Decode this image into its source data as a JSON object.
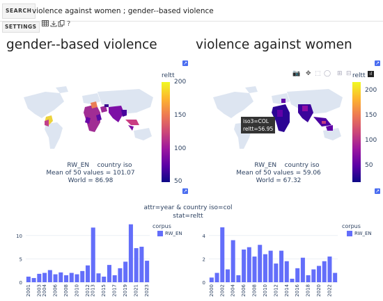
{
  "search": {
    "button_label": "SEARCH",
    "query": "violence against women ; gender--based violence"
  },
  "settings": {
    "button_label": "SETTINGS",
    "help_label": "?"
  },
  "panels": [
    {
      "title": "gender--based violence",
      "colorbar_title": "reltt",
      "colorbar_ticks": [
        "200",
        "150",
        "100",
        "50"
      ],
      "colorbar_range": [
        50,
        200
      ],
      "map_caption_source": "RW_EN",
      "map_caption_label": "country iso",
      "mean_text": "Mean of 50 values = 101.07",
      "world_text": "World = 86.98"
    },
    {
      "title": "violence against women",
      "colorbar_title": "reltt",
      "colorbar_ticks": [
        "200",
        "150",
        "100",
        "50"
      ],
      "colorbar_range": [
        50,
        250
      ],
      "map_caption_source": "RW_EN",
      "map_caption_label": "country iso",
      "mean_text": "Mean of 50 values = 59.06",
      "world_text": "World = 67.32",
      "tooltip_line1": "iso3=COL",
      "tooltip_line2": "reltt=56.95"
    }
  ],
  "bar_header": {
    "line1": "attr=year & country iso=col",
    "line2": "stat=reltt"
  },
  "colors": {
    "bar": "#636efa",
    "accent": "#4a6df0"
  },
  "chart_data": [
    {
      "type": "bar",
      "title": "",
      "legend_title": "corpus",
      "series": [
        {
          "name": "RW_EN",
          "color": "#636efa"
        }
      ],
      "categories": [
        "2001",
        "2002",
        "2003",
        "2004",
        "2005",
        "2006",
        "2007",
        "2008",
        "2009",
        "2010",
        "2011",
        "2012",
        "2013",
        "2014",
        "2015",
        "2016",
        "2017",
        "2018",
        "2019",
        "2020",
        "2021",
        "2022",
        "2023"
      ],
      "x_tick_labels": [
        "2001",
        "2003",
        "2004",
        "2006",
        "2008",
        "2010",
        "2012",
        "2013",
        "2015",
        "2017",
        "2019",
        "2021",
        "2023"
      ],
      "values": [
        1.2,
        0.9,
        1.8,
        2.0,
        2.6,
        1.7,
        2.1,
        1.5,
        2.0,
        1.7,
        2.4,
        3.6,
        11.7,
        1.9,
        1.2,
        3.7,
        1.5,
        3.0,
        4.4,
        12.4,
        7.3,
        7.6,
        4.6
      ],
      "ylim": [
        0,
        12.5
      ],
      "y_ticks": [
        0,
        5,
        10
      ]
    },
    {
      "type": "bar",
      "title": "",
      "legend_title": "corpus",
      "series": [
        {
          "name": "RW_EN",
          "color": "#636efa"
        }
      ],
      "categories": [
        "2000",
        "2001",
        "2002",
        "2003",
        "2004",
        "2005",
        "2006",
        "2007",
        "2008",
        "2009",
        "2010",
        "2011",
        "2012",
        "2013",
        "2014",
        "2015",
        "2016",
        "2017",
        "2018",
        "2019",
        "2020",
        "2021",
        "2022",
        "2023"
      ],
      "x_tick_labels": [
        "2000",
        "2002",
        "2004",
        "2006",
        "2008",
        "2010",
        "2012",
        "2014",
        "2016",
        "2018",
        "2020",
        "2022"
      ],
      "values": [
        0.4,
        0.8,
        4.7,
        1.1,
        3.6,
        0.6,
        2.8,
        3.0,
        2.2,
        3.2,
        2.4,
        2.7,
        1.6,
        2.7,
        1.8,
        0.3,
        1.2,
        2.1,
        0.6,
        1.1,
        1.4,
        1.8,
        2.2,
        0.8
      ],
      "ylim": [
        0,
        5
      ],
      "y_ticks": [
        0,
        2,
        4
      ]
    }
  ]
}
